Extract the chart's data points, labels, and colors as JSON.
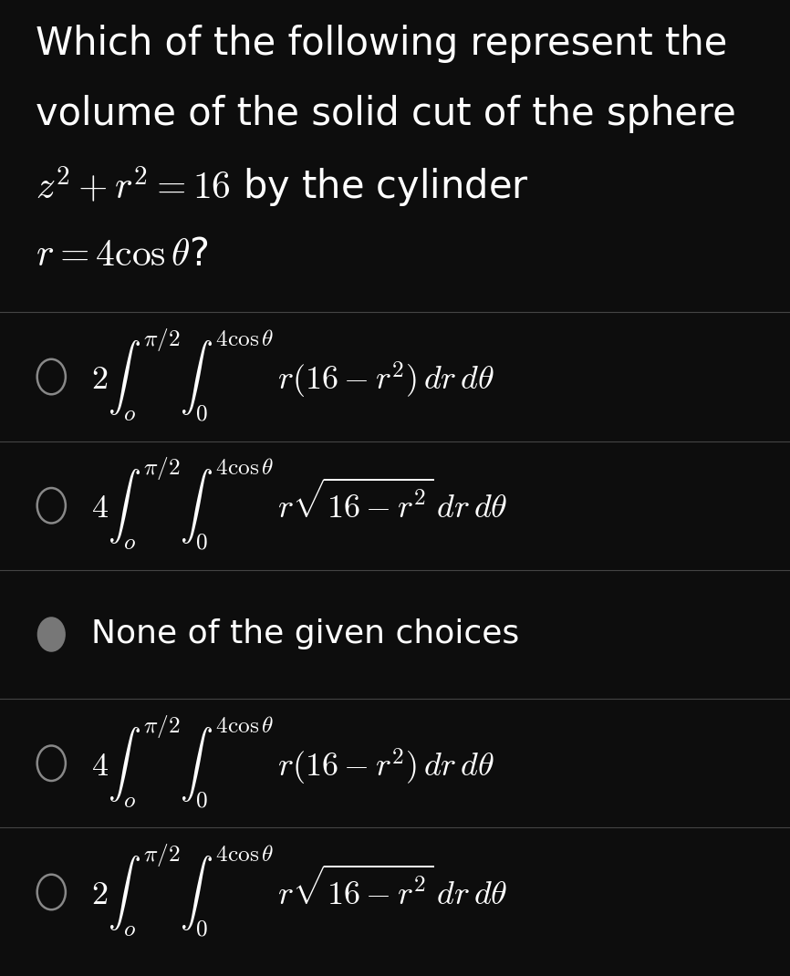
{
  "background_color": "#0d0d0d",
  "text_color": "#ffffff",
  "divider_color": "#444444",
  "circle_edge_color": "#888888",
  "figsize": [
    8.66,
    10.7
  ],
  "dpi": 100,
  "title_lines": [
    "Which of the following represent the",
    "volume of the solid cut of the sphere",
    "$z^2 + r^2 = 16$ by the cylinder",
    "$r = 4 \\cos \\theta$?"
  ],
  "options": [
    {
      "text": "$2 \\int_o^{\\pi/2} \\int_0^{4 \\cos \\theta}\\, r(16 - r^2)\\, dr\\, d\\theta$",
      "has_sqrt_overline": false,
      "circle_filled": false,
      "circle_gray": false
    },
    {
      "text": "$4 \\int_o^{\\pi/2} \\int_0^{4 \\cos \\theta}\\, r\\sqrt{16 - r^2}\\, dr\\, d\\theta$",
      "has_sqrt_overline": true,
      "circle_filled": false,
      "circle_gray": false
    },
    {
      "text": "None of the given choices",
      "has_sqrt_overline": false,
      "circle_filled": true,
      "circle_gray": true
    },
    {
      "text": "$4 \\int_o^{\\pi/2} \\int_0^{4 \\cos \\theta}\\, r(16 - r^2)\\, dr\\, d\\theta$",
      "has_sqrt_overline": false,
      "circle_filled": false,
      "circle_gray": false
    },
    {
      "text": "$2 \\int_o^{\\pi/2} \\int_0^{4 \\cos \\theta}\\, r\\sqrt{16 - r^2}\\, dr\\, d\\theta$",
      "has_sqrt_overline": true,
      "circle_filled": false,
      "circle_gray": false
    }
  ]
}
